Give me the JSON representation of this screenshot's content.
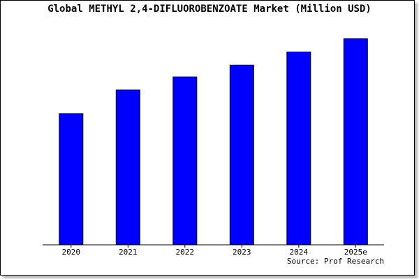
{
  "chart_data": {
    "type": "bar",
    "title": "Global METHYL 2,4-DIFLUOROBENZOATE Market (Million USD)",
    "categories": [
      "2020",
      "2021",
      "2022",
      "2023",
      "2024",
      "2025e"
    ],
    "values": [
      100,
      118,
      128,
      137,
      147,
      157
    ],
    "ylim": [
      0,
      160
    ],
    "xlabel": "",
    "ylabel": "",
    "grid": false,
    "bar_color": "#0000ff",
    "source": "Source: Prof Research"
  }
}
